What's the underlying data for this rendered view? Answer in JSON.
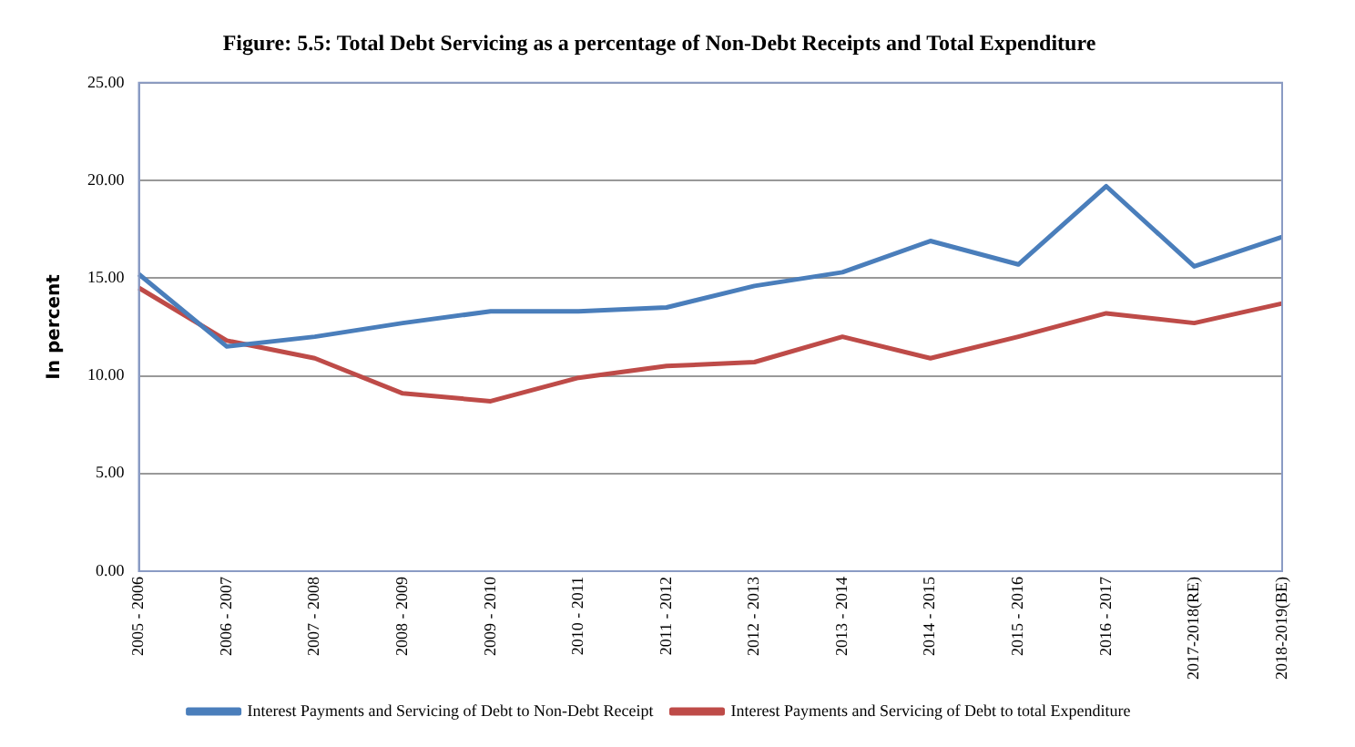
{
  "chart_data": {
    "type": "line",
    "title": "Figure: 5.5: Total Debt Servicing as a percentage of Non-Debt Receipts and Total Expenditure",
    "ylabel": "In percent",
    "categories": [
      "2005 - 2006",
      "2006 - 2007",
      "2007 - 2008",
      "2008 - 2009",
      "2009 - 2010",
      "2010 - 2011",
      "2011 - 2012",
      "2012 - 2013",
      "2013 - 2014",
      "2014 - 2015",
      "2015 - 2016",
      "2016 - 2017",
      "2017-2018(RE)",
      "2018-2019(BE)"
    ],
    "series": [
      {
        "name": "Interest Payments and Servicing of Debt to Non-Debt Receipt",
        "color": "#4a7ebb",
        "values": [
          15.2,
          11.5,
          12.0,
          12.7,
          13.3,
          13.3,
          13.5,
          14.6,
          15.3,
          16.9,
          15.7,
          19.7,
          15.6,
          17.1
        ]
      },
      {
        "name": "Interest Payments and Servicing of Debt to total Expenditure",
        "color": "#be4b48",
        "values": [
          14.5,
          11.8,
          10.9,
          9.1,
          8.7,
          9.9,
          10.5,
          10.7,
          12.0,
          10.9,
          12.0,
          13.2,
          12.7,
          13.7
        ]
      }
    ],
    "ylim": [
      0,
      25
    ],
    "yticks": [
      {
        "value": 0,
        "label": "0.00"
      },
      {
        "value": 5,
        "label": "5.00"
      },
      {
        "value": 10,
        "label": "10.00"
      },
      {
        "value": 15,
        "label": "15.00"
      },
      {
        "value": 20,
        "label": "20.00"
      },
      {
        "value": 25,
        "label": "25.00"
      }
    ],
    "grid": "y",
    "legend": "bottom",
    "marker": "none",
    "line_style": "solid"
  }
}
